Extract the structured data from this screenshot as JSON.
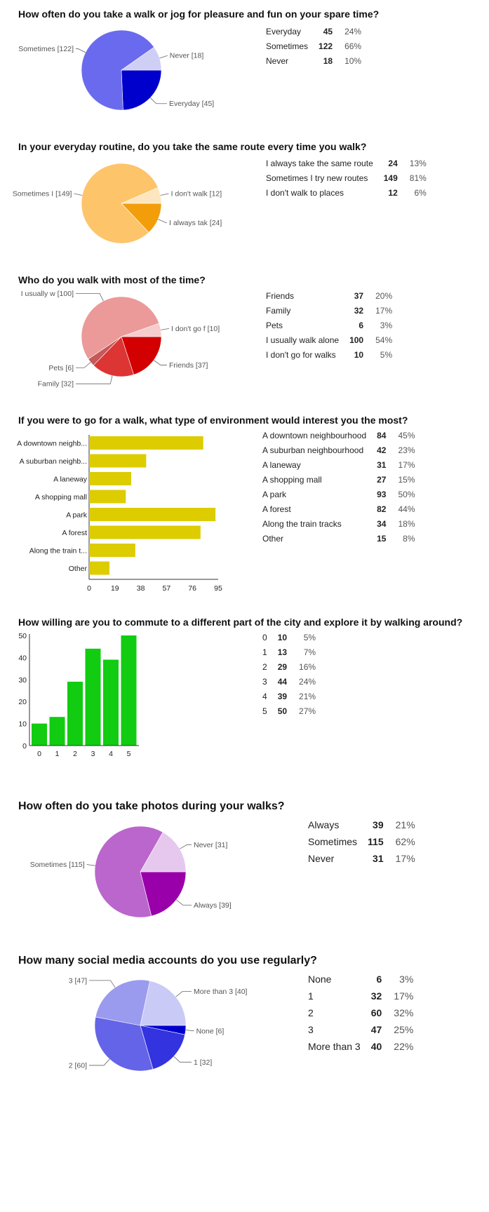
{
  "chart_data": [
    {
      "type": "pie",
      "title": "How often do you take a walk or jog for pleasure and fun on your spare time?",
      "slices": [
        {
          "label": "Everyday",
          "value": 45,
          "percent": "24%",
          "color": "#0000cc",
          "callout": "Everyday  [45]"
        },
        {
          "label": "Sometimes",
          "value": 122,
          "percent": "66%",
          "color": "#6a6aee",
          "callout": "Sometimes [122]"
        },
        {
          "label": "Never",
          "value": 18,
          "percent": "10%",
          "color": "#cfcff6",
          "callout": "Never [18]"
        }
      ]
    },
    {
      "type": "pie",
      "title": "In your everyday routine, do you take the same route every time you walk?",
      "slices": [
        {
          "label": "I always take the same route",
          "value": 24,
          "percent": "13%",
          "color": "#f29e0b",
          "callout": "I always tak [24]"
        },
        {
          "label": "Sometimes I try new routes",
          "value": 149,
          "percent": "81%",
          "color": "#fdc46a",
          "callout": "Sometimes I [149]"
        },
        {
          "label": "I don't walk to places",
          "value": 12,
          "percent": "6%",
          "color": "#fde6be",
          "callout": "I don't walk [12]"
        }
      ]
    },
    {
      "type": "pie",
      "title": "Who do you walk with most of the time?",
      "slices": [
        {
          "label": "Friends",
          "value": 37,
          "percent": "20%",
          "color": "#d20000",
          "callout": "Friends [37]"
        },
        {
          "label": "Family",
          "value": 32,
          "percent": "17%",
          "color": "#dd3434",
          "callout": "Family  [32]"
        },
        {
          "label": "Pets",
          "value": 6,
          "percent": "3%",
          "color": "#c55858",
          "callout": "Pets [6]"
        },
        {
          "label": "I usually walk alone",
          "value": 100,
          "percent": "54%",
          "color": "#eb9999",
          "callout": "I usually w [100]"
        },
        {
          "label": "I don't go for walks",
          "value": 10,
          "percent": "5%",
          "color": "#f6cccc",
          "callout": "I don't go f [10]"
        }
      ]
    },
    {
      "type": "bar",
      "orientation": "horizontal",
      "title": "If you were to go for a walk, what type of environment would interest you the most?",
      "categories": [
        "A downtown neighb...",
        "A suburban neighb...",
        "A laneway",
        "A shopping mall",
        "A park",
        "A forest",
        "Along the train t...",
        "Other"
      ],
      "table_labels": [
        "A downtown neighbourhood",
        "A suburban neighbourhood",
        "A laneway",
        "A shopping mall",
        "A park",
        "A forest",
        "Along the train tracks",
        "Other"
      ],
      "values": [
        84,
        42,
        31,
        27,
        93,
        82,
        34,
        15
      ],
      "percents": [
        "45%",
        "23%",
        "17%",
        "15%",
        "50%",
        "44%",
        "18%",
        "8%"
      ],
      "xticks": [
        "0",
        "19",
        "38",
        "57",
        "76",
        "95"
      ],
      "xlim": [
        0,
        95
      ],
      "color": "#dccc00"
    },
    {
      "type": "bar",
      "orientation": "vertical",
      "title": "How willing are you to commute to a different part of the city and explore it by walking around?",
      "categories": [
        "0",
        "1",
        "2",
        "3",
        "4",
        "5"
      ],
      "values": [
        10,
        13,
        29,
        44,
        39,
        50
      ],
      "percents": [
        "5%",
        "7%",
        "16%",
        "24%",
        "21%",
        "27%"
      ],
      "yticks": [
        "0",
        "10",
        "20",
        "30",
        "40",
        "50"
      ],
      "ylim": [
        0,
        50
      ],
      "color": "#11cc11"
    },
    {
      "type": "pie",
      "title": "How often do you take photos during your walks?",
      "slices": [
        {
          "label": "Always",
          "value": 39,
          "percent": "21%",
          "color": "#9900aa",
          "callout": "Always [39]"
        },
        {
          "label": "Sometimes",
          "value": 115,
          "percent": "62%",
          "color": "#bb66cc",
          "callout": "Sometimes [115]"
        },
        {
          "label": "Never",
          "value": 31,
          "percent": "17%",
          "color": "#e6c8ef",
          "callout": "Never  [31]"
        }
      ]
    },
    {
      "type": "pie",
      "title": "How many social media accounts do you use regularly?",
      "slices": [
        {
          "label": "None",
          "value": 6,
          "percent": "3%",
          "color": "#0000cc",
          "callout": "None [6]"
        },
        {
          "label": "1",
          "value": 32,
          "percent": "17%",
          "color": "#3333e0",
          "callout": "1 [32]"
        },
        {
          "label": "2",
          "value": 60,
          "percent": "32%",
          "color": "#6464e8",
          "callout": "2 [60]"
        },
        {
          "label": "3",
          "value": 47,
          "percent": "25%",
          "color": "#9a9aee",
          "callout": "3 [47]"
        },
        {
          "label": "More than 3",
          "value": 40,
          "percent": "22%",
          "color": "#cacaf6",
          "callout": "More than 3 [40]"
        }
      ]
    }
  ]
}
